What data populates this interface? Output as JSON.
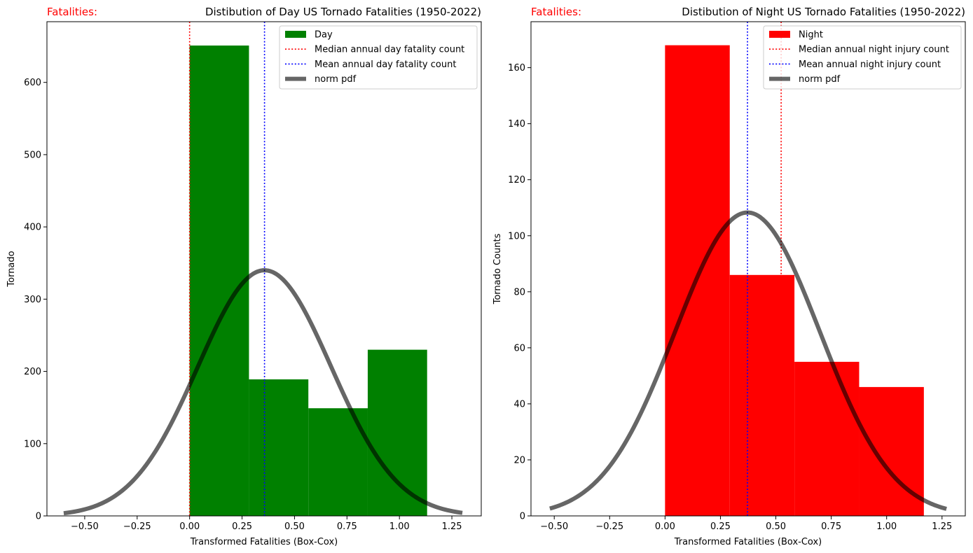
{
  "chart_data": [
    {
      "type": "bar",
      "title": "Distibution of Day US Tornado Fatalities (1950-2022)",
      "tag": "Fatalities:",
      "tag_color": "#ff0000",
      "xlabel": "Transformed Fatalities (Box-Cox)",
      "ylabel": "Tornado",
      "xlim": [
        -0.68,
        1.39
      ],
      "ylim": [
        0,
        684
      ],
      "xticks": [
        -0.5,
        -0.25,
        0.0,
        0.25,
        0.5,
        0.75,
        1.0,
        1.25
      ],
      "xtick_labels": [
        "−0.50",
        "−0.25",
        "0.00",
        "0.25",
        "0.50",
        "0.75",
        "1.00",
        "1.25"
      ],
      "yticks": [
        0,
        100,
        200,
        300,
        400,
        500,
        600
      ],
      "ytick_labels": [
        "0",
        "100",
        "200",
        "300",
        "400",
        "500",
        "600"
      ],
      "bars": [
        {
          "x0": 0.0,
          "x1": 0.283,
          "value": 651
        },
        {
          "x0": 0.283,
          "x1": 0.566,
          "value": 189
        },
        {
          "x0": 0.566,
          "x1": 0.849,
          "value": 149
        },
        {
          "x0": 0.849,
          "x1": 1.132,
          "value": 230
        }
      ],
      "bar_color": "#008000",
      "median_x": 0.0,
      "mean_x": 0.357,
      "pdf": {
        "mean": 0.357,
        "sd": 0.318,
        "peak": 340,
        "x_range": [
          -0.6,
          1.3
        ]
      },
      "legend_position": "top-right",
      "legend": [
        {
          "label": "Day",
          "kind": "patch",
          "color": "#008000"
        },
        {
          "label": "Median annual day fatality count",
          "kind": "dotted",
          "color": "#ff0000"
        },
        {
          "label": "Mean annual day fatality count",
          "kind": "dotted",
          "color": "#0000ff"
        },
        {
          "label": "norm pdf",
          "kind": "thick",
          "color": "#000000"
        }
      ]
    },
    {
      "type": "bar",
      "title": "Distibution of Night US Tornado Fatalities (1950-2022)",
      "tag": "Fatalities:",
      "tag_color": "#ff0000",
      "xlabel": "Transformed Fatalities (Box-Cox)",
      "ylabel": "Tornado Counts",
      "xlim": [
        -0.605,
        1.355
      ],
      "ylim": [
        0,
        176.4
      ],
      "xticks": [
        -0.5,
        -0.25,
        0.0,
        0.25,
        0.5,
        0.75,
        1.0,
        1.25
      ],
      "xtick_labels": [
        "−0.50",
        "−0.25",
        "0.00",
        "0.25",
        "0.50",
        "0.75",
        "1.00",
        "1.25"
      ],
      "yticks": [
        0,
        20,
        40,
        60,
        80,
        100,
        120,
        140,
        160
      ],
      "ytick_labels": [
        "0",
        "20",
        "40",
        "60",
        "80",
        "100",
        "120",
        "140",
        "160"
      ],
      "bars": [
        {
          "x0": 0.0,
          "x1": 0.292,
          "value": 168
        },
        {
          "x0": 0.292,
          "x1": 0.584,
          "value": 86
        },
        {
          "x0": 0.584,
          "x1": 0.876,
          "value": 55
        },
        {
          "x0": 0.876,
          "x1": 1.168,
          "value": 46
        }
      ],
      "bar_color": "#ff0000",
      "median_x": 0.524,
      "mean_x": 0.372,
      "pdf": {
        "mean": 0.372,
        "sd": 0.327,
        "peak": 108.3,
        "x_range": [
          -0.52,
          1.27
        ]
      },
      "legend_position": "top-right",
      "legend": [
        {
          "label": "Night",
          "kind": "patch",
          "color": "#ff0000"
        },
        {
          "label": "Median annual night injury count",
          "kind": "dotted",
          "color": "#ff0000"
        },
        {
          "label": "Mean annual night injury count",
          "kind": "dotted",
          "color": "#0000ff"
        },
        {
          "label": "norm pdf",
          "kind": "thick",
          "color": "#000000"
        }
      ]
    }
  ]
}
